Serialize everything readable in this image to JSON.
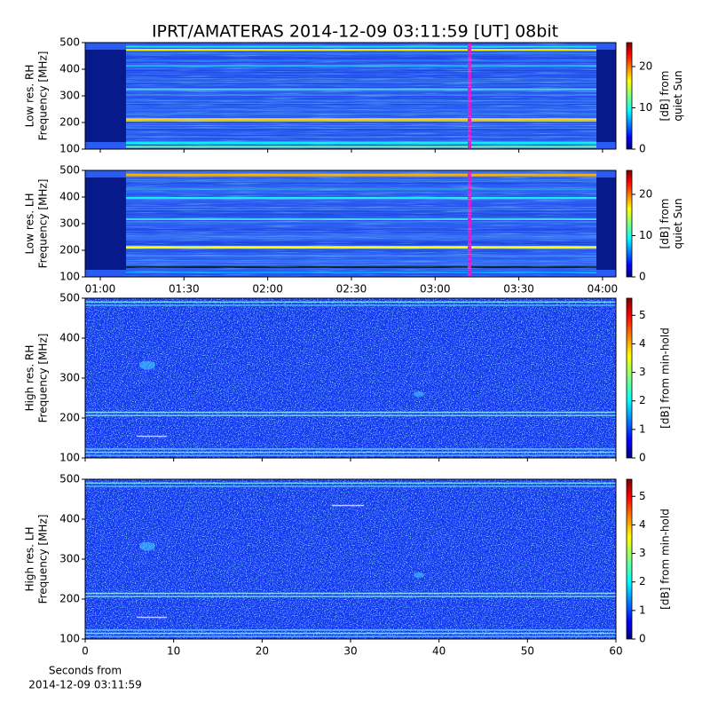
{
  "title": "IPRT/AMATERAS 2014-12-09 03:11:59 [UT]   08bit",
  "chart_data": [
    {
      "type": "spectrogram",
      "ylabel": [
        "Low res. RH",
        "Frequency [MHz]"
      ],
      "ylim": [
        100,
        500
      ],
      "yticks": [
        100,
        200,
        300,
        400,
        500
      ],
      "xlim": [
        54.6,
        244.8
      ],
      "xticks": [
        {
          "value": 60,
          "label": "01:00"
        },
        {
          "value": 90,
          "label": "01:30"
        },
        {
          "value": 120,
          "label": "02:00"
        },
        {
          "value": 150,
          "label": "02:30"
        },
        {
          "value": 180,
          "label": "03:00"
        },
        {
          "value": 210,
          "label": "03:30"
        },
        {
          "value": 240,
          "label": "04:00"
        }
      ],
      "show_xtick_labels": false,
      "resolution": "low",
      "colorbar": {
        "label": [
          "[dB] from",
          "quiet Sun"
        ],
        "lim": [
          0,
          25.8
        ],
        "ticks": [
          0,
          10,
          20
        ]
      }
    },
    {
      "type": "spectrogram",
      "ylabel": [
        "Low res. LH",
        "Frequency [MHz]"
      ],
      "ylim": [
        100,
        500
      ],
      "yticks": [
        100,
        200,
        300,
        400,
        500
      ],
      "xlim": [
        54.6,
        244.8
      ],
      "xticks": [
        {
          "value": 60,
          "label": "01:00"
        },
        {
          "value": 90,
          "label": "01:30"
        },
        {
          "value": 120,
          "label": "02:00"
        },
        {
          "value": 150,
          "label": "02:30"
        },
        {
          "value": 180,
          "label": "03:00"
        },
        {
          "value": 210,
          "label": "03:30"
        },
        {
          "value": 240,
          "label": "04:00"
        }
      ],
      "show_xtick_labels": true,
      "resolution": "low",
      "colorbar": {
        "label": [
          "[dB] from",
          "quiet Sun"
        ],
        "lim": [
          0,
          25.8
        ],
        "ticks": [
          0,
          10,
          20
        ]
      }
    },
    {
      "type": "spectrogram",
      "ylabel": [
        "High res. RH",
        "Frequency [MHz]"
      ],
      "ylim": [
        100,
        500
      ],
      "yticks": [
        100,
        200,
        300,
        400,
        500
      ],
      "xlim": [
        0,
        60
      ],
      "xticks": [
        0,
        10,
        20,
        30,
        40,
        50,
        60
      ],
      "show_xtick_labels": false,
      "resolution": "high",
      "colorbar": {
        "label": [
          "[dB] from min-hold"
        ],
        "lim": [
          0,
          5.6
        ],
        "ticks": [
          0,
          1,
          2,
          3,
          4,
          5
        ]
      }
    },
    {
      "type": "spectrogram",
      "ylabel": [
        "High res. LH",
        "Frequency [MHz]"
      ],
      "ylim": [
        100,
        500
      ],
      "yticks": [
        100,
        200,
        300,
        400,
        500
      ],
      "xlim": [
        0,
        60
      ],
      "xticks": [
        0,
        10,
        20,
        30,
        40,
        50,
        60
      ],
      "show_xtick_labels": true,
      "resolution": "high",
      "xlabel": [
        "Seconds from",
        "2014-12-09 03:11:59"
      ],
      "colorbar": {
        "label": [
          "[dB] from min-hold"
        ],
        "lim": [
          0,
          5.6
        ],
        "ticks": [
          0,
          1,
          2,
          3,
          4,
          5
        ]
      }
    }
  ]
}
